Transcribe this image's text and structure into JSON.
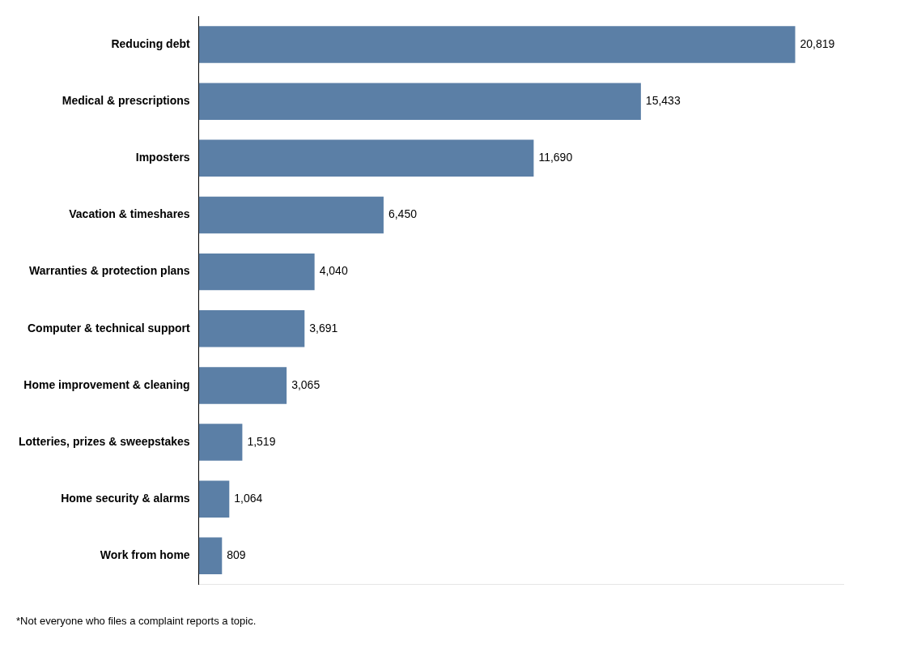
{
  "chart_data": {
    "type": "bar",
    "orientation": "horizontal",
    "categories": [
      "Reducing debt",
      "Medical & prescriptions",
      "Imposters",
      "Vacation & timeshares",
      "Warranties & protection plans",
      "Computer & technical support",
      "Home improvement & cleaning",
      "Lotteries, prizes & sweepstakes",
      "Home security & alarms",
      "Work from home"
    ],
    "values": [
      20819,
      15433,
      11690,
      6450,
      4040,
      3691,
      3065,
      1519,
      1064,
      809
    ],
    "value_labels": [
      "20,819",
      "15,433",
      "11,690",
      "6,450",
      "4,040",
      "3,691",
      "3,065",
      "1,519",
      "1,064",
      "809"
    ],
    "color": "#5b7fa6",
    "xlim": [
      0,
      22500
    ],
    "data_labels": true,
    "tick_labels": "y",
    "grid": false,
    "annotations": [
      "*Not everyone who files a complaint reports a topic."
    ]
  }
}
